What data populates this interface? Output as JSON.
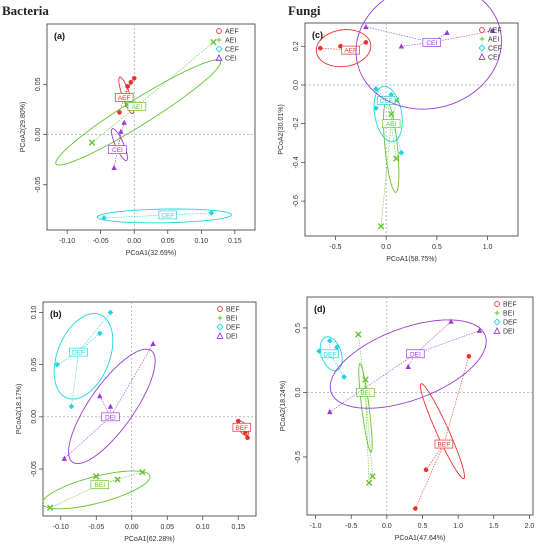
{
  "sections": {
    "left": "Bacteria",
    "right": "Fungi"
  },
  "colors": {
    "red": "#e8322b",
    "green": "#63c52f",
    "cyan": "#1fd5e0",
    "purple": "#9b3bd8"
  },
  "chart_data": [
    {
      "id": "a",
      "type": "scatter",
      "label": "(a)",
      "xlabel": "PCoA1(32.69%)",
      "ylabel": "PCoA2(29.80%)",
      "xlim": [
        -0.13,
        0.18
      ],
      "ylim": [
        -0.095,
        0.11
      ],
      "xticks": [
        -0.1,
        -0.05,
        0.0,
        0.05,
        0.1,
        0.15
      ],
      "xtick_labels": [
        "-0.10",
        "-0.05",
        "0.00",
        "0.05",
        "0.10",
        "0.15"
      ],
      "yticks": [
        -0.05,
        0.0,
        0.05
      ],
      "ytick_labels": [
        "-0.05",
        "0.00",
        "0.05"
      ],
      "legend_position": "top-right",
      "groups": [
        {
          "name": "AEF",
          "color": "red",
          "marker": "circle",
          "label_at": [
            -0.015,
            0.037
          ],
          "points": [
            [
              -0.022,
              0.022
            ],
            [
              -0.01,
              0.048
            ],
            [
              -0.005,
              0.052
            ],
            [
              0.0,
              0.056
            ],
            [
              -0.015,
              0.035
            ]
          ],
          "ellipse": {
            "cx": -0.012,
            "cy": 0.039,
            "rx": 0.029,
            "ry": 0.005,
            "angle": -70
          }
        },
        {
          "name": "AEI",
          "color": "green",
          "marker": "cross",
          "label_at": [
            0.004,
            0.028
          ],
          "points": [
            [
              -0.063,
              -0.008
            ],
            [
              0.118,
              0.092
            ],
            [
              -0.01,
              0.03
            ],
            [
              0.005,
              0.03
            ]
          ],
          "ellipse": {
            "cx": 0.006,
            "cy": 0.022,
            "rx": 0.145,
            "ry": 0.01,
            "angle": 32
          }
        },
        {
          "name": "CEF",
          "color": "cyan",
          "marker": "diamond",
          "label_at": [
            0.05,
            -0.08
          ],
          "points": [
            [
              -0.045,
              -0.083
            ],
            [
              0.055,
              -0.08
            ],
            [
              0.115,
              -0.078
            ]
          ],
          "ellipse": {
            "cx": 0.045,
            "cy": -0.081,
            "rx": 0.1,
            "ry": 0.0045,
            "angle": 1
          }
        },
        {
          "name": "CEI",
          "color": "purple",
          "marker": "triangle",
          "label_at": [
            -0.025,
            -0.015
          ],
          "points": [
            [
              -0.03,
              -0.033
            ],
            [
              -0.015,
              0.012
            ],
            [
              -0.02,
              0.003
            ]
          ],
          "ellipse": {
            "cx": -0.022,
            "cy": -0.01,
            "rx": 0.026,
            "ry": 0.005,
            "angle": -65
          }
        }
      ]
    },
    {
      "id": "c",
      "type": "scatter",
      "label": "(c)",
      "xlabel": "PCoA1(58.75%)",
      "ylabel": "PCoA2(30.01%)",
      "xlim": [
        -0.8,
        1.3
      ],
      "ylim": [
        -0.78,
        0.32
      ],
      "xticks": [
        -0.5,
        0.0,
        0.5,
        1.0
      ],
      "xtick_labels": [
        "-0.5",
        "0.0",
        "0.5",
        "1.0"
      ],
      "yticks": [
        -0.6,
        -0.4,
        -0.2,
        0.0,
        0.2
      ],
      "ytick_labels": [
        "-0.6",
        "-0.4",
        "-0.2",
        "0.0",
        "0.2"
      ],
      "legend_position": "top-right",
      "groups": [
        {
          "name": "AEF",
          "color": "red",
          "marker": "circle",
          "label_at": [
            -0.35,
            0.18
          ],
          "points": [
            [
              -0.65,
              0.19
            ],
            [
              -0.45,
              0.2
            ],
            [
              -0.2,
              0.22
            ],
            [
              -0.3,
              0.17
            ]
          ],
          "ellipse": {
            "cx": -0.42,
            "cy": 0.19,
            "rx": 0.27,
            "ry": 0.05,
            "angle": 5
          }
        },
        {
          "name": "AEI",
          "color": "green",
          "marker": "cross",
          "label_at": [
            0.05,
            -0.2
          ],
          "points": [
            [
              -0.05,
              -0.73
            ],
            [
              0.1,
              -0.08
            ],
            [
              0.1,
              -0.38
            ],
            [
              0.05,
              -0.15
            ]
          ],
          "ellipse": {
            "cx": 0.05,
            "cy": -0.32,
            "rx": 0.45,
            "ry": 0.06,
            "angle": -84
          }
        },
        {
          "name": "CEF",
          "color": "cyan",
          "marker": "diamond",
          "label_at": [
            0.0,
            -0.08
          ],
          "points": [
            [
              -0.1,
              -0.02
            ],
            [
              0.05,
              -0.05
            ],
            [
              0.15,
              -0.35
            ],
            [
              -0.1,
              -0.12
            ]
          ],
          "ellipse": {
            "cx": 0.02,
            "cy": -0.15,
            "rx": 0.25,
            "ry": 0.1,
            "angle": -65
          }
        },
        {
          "name": "CEI",
          "color": "purple",
          "marker": "triangle",
          "label_at": [
            0.45,
            0.22
          ],
          "points": [
            [
              -0.2,
              0.3
            ],
            [
              0.15,
              0.2
            ],
            [
              0.6,
              0.27
            ],
            [
              1.05,
              0.28
            ],
            [
              0.45,
              0.22
            ]
          ],
          "ellipse": {
            "cx": 0.42,
            "cy": 0.2,
            "rx": 0.72,
            "ry": 0.17,
            "angle": 5
          }
        }
      ]
    },
    {
      "id": "b",
      "type": "scatter",
      "label": "(b)",
      "xlabel": "PCoA1(62.28%)",
      "ylabel": "PCoA2(18.17%)",
      "xlim": [
        -0.125,
        0.175
      ],
      "ylim": [
        -0.095,
        0.11
      ],
      "xticks": [
        -0.1,
        -0.05,
        0.0,
        0.05,
        0.1,
        0.15
      ],
      "xtick_labels": [
        "-0.10",
        "-0.05",
        "0.00",
        "0.05",
        "0.10",
        "0.15"
      ],
      "yticks": [
        -0.05,
        0.0,
        0.05,
        0.1
      ],
      "ytick_labels": [
        "-0.05",
        "0.00",
        "0.05",
        "0.10"
      ],
      "legend_position": "top-right",
      "groups": [
        {
          "name": "BEF",
          "color": "red",
          "marker": "circle",
          "label_at": [
            0.155,
            -0.01
          ],
          "points": [
            [
              0.15,
              -0.004
            ],
            [
              0.155,
              -0.01
            ],
            [
              0.16,
              -0.015
            ],
            [
              0.163,
              -0.02
            ],
            [
              0.152,
              -0.008
            ]
          ],
          "ellipse": {
            "cx": 0.157,
            "cy": -0.011,
            "rx": 0.011,
            "ry": 0.004,
            "angle": -50
          }
        },
        {
          "name": "BEI",
          "color": "green",
          "marker": "cross",
          "label_at": [
            -0.045,
            -0.065
          ],
          "points": [
            [
              -0.115,
              -0.087
            ],
            [
              -0.05,
              -0.057
            ],
            [
              -0.02,
              -0.06
            ],
            [
              0.015,
              -0.053
            ]
          ],
          "ellipse": {
            "cx": -0.05,
            "cy": -0.07,
            "rx": 0.078,
            "ry": 0.009,
            "angle": 14
          }
        },
        {
          "name": "DEF",
          "color": "cyan",
          "marker": "diamond",
          "label_at": [
            -0.075,
            0.062
          ],
          "points": [
            [
              -0.105,
              0.05
            ],
            [
              -0.07,
              0.062
            ],
            [
              -0.045,
              0.08
            ],
            [
              -0.03,
              0.1
            ],
            [
              -0.085,
              0.01
            ]
          ],
          "ellipse": {
            "cx": -0.068,
            "cy": 0.058,
            "rx": 0.06,
            "ry": 0.028,
            "angle": 55
          }
        },
        {
          "name": "DEI",
          "color": "purple",
          "marker": "triangle",
          "label_at": [
            -0.03,
            0.0
          ],
          "points": [
            [
              -0.095,
              -0.04
            ],
            [
              -0.045,
              0.02
            ],
            [
              -0.03,
              0.01
            ],
            [
              0.03,
              0.07
            ]
          ],
          "ellipse": {
            "cx": -0.028,
            "cy": 0.01,
            "rx": 0.095,
            "ry": 0.022,
            "angle": 52
          }
        }
      ]
    },
    {
      "id": "d",
      "type": "scatter",
      "label": "(d)",
      "xlabel": "PCoA1(47.64%)",
      "ylabel": "PCoA2(18.24%)",
      "xlim": [
        -1.12,
        2.05
      ],
      "ylim": [
        -0.95,
        0.74
      ],
      "xticks": [
        -1.0,
        -0.5,
        0.0,
        0.5,
        1.0,
        1.5,
        2.0
      ],
      "xtick_labels": [
        "-1.0",
        "-0.5",
        "0.0",
        "0.5",
        "1.0",
        "1.5",
        "2.0"
      ],
      "yticks": [
        -0.5,
        0.0,
        0.5
      ],
      "ytick_labels": [
        "-0.5",
        "0.0",
        "0.5"
      ],
      "legend_position": "top-right",
      "groups": [
        {
          "name": "BEF",
          "color": "red",
          "marker": "circle",
          "label_at": [
            0.8,
            -0.4
          ],
          "points": [
            [
              0.4,
              -0.9
            ],
            [
              0.55,
              -0.6
            ],
            [
              0.8,
              -0.4
            ],
            [
              1.15,
              0.28
            ]
          ],
          "ellipse": {
            "cx": 0.78,
            "cy": -0.3,
            "rx": 0.75,
            "ry": 0.06,
            "angle": -66
          }
        },
        {
          "name": "BEI",
          "color": "green",
          "marker": "cross",
          "label_at": [
            -0.3,
            0.0
          ],
          "points": [
            [
              -0.4,
              0.45
            ],
            [
              -0.2,
              -0.65
            ],
            [
              -0.25,
              -0.7
            ],
            [
              -0.3,
              0.1
            ]
          ],
          "ellipse": {
            "cx": -0.3,
            "cy": -0.12,
            "rx": 0.65,
            "ry": 0.05,
            "angle": -83
          }
        },
        {
          "name": "DEF",
          "color": "cyan",
          "marker": "diamond",
          "label_at": [
            -0.8,
            0.3
          ],
          "points": [
            [
              -0.95,
              0.32
            ],
            [
              -0.8,
              0.4
            ],
            [
              -0.7,
              0.35
            ],
            [
              -0.6,
              0.12
            ],
            [
              -0.75,
              0.28
            ]
          ],
          "ellipse": {
            "cx": -0.78,
            "cy": 0.3,
            "rx": 0.22,
            "ry": 0.08,
            "angle": -50
          }
        },
        {
          "name": "DEI",
          "color": "purple",
          "marker": "triangle",
          "label_at": [
            0.4,
            0.3
          ],
          "points": [
            [
              -0.8,
              -0.15
            ],
            [
              0.3,
              0.2
            ],
            [
              0.9,
              0.55
            ],
            [
              1.3,
              0.48
            ],
            [
              0.4,
              0.3
            ]
          ],
          "ellipse": {
            "cx": 0.3,
            "cy": 0.22,
            "rx": 1.15,
            "ry": 0.16,
            "angle": 18
          }
        }
      ]
    }
  ]
}
